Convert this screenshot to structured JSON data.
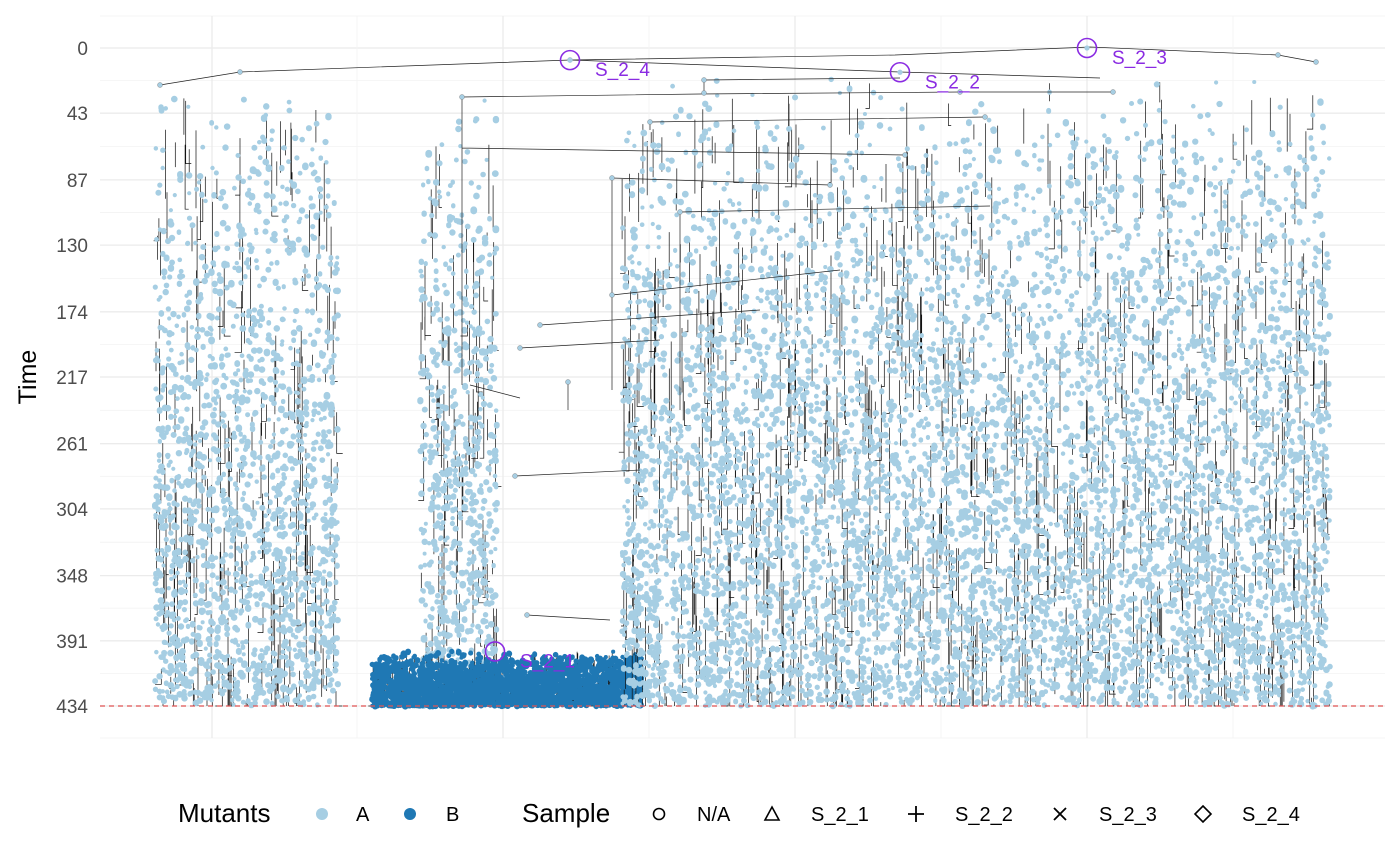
{
  "chart_data": {
    "type": "tree",
    "ylabel": "Time",
    "y_ticks": [
      0,
      43,
      87,
      130,
      174,
      217,
      261,
      304,
      348,
      391,
      434
    ],
    "ylim": [
      0,
      455
    ],
    "y_reversed": true,
    "grid": true,
    "reference_line": {
      "y": 434,
      "color": "#e05555",
      "style": "dashed"
    },
    "colors": {
      "A": "#a6cee3",
      "B": "#1f78b4",
      "edge": "#111111",
      "sample": "#8a2be2"
    },
    "legend": {
      "placement": "bottom",
      "mutants": {
        "title": "Mutants",
        "entries": [
          "A",
          "B"
        ]
      },
      "sample": {
        "title": "Sample",
        "entries": [
          "N/A",
          "S_2_1",
          "S_2_2",
          "S_2_3",
          "S_2_4"
        ]
      }
    },
    "samples": [
      {
        "name": "S_2_4",
        "time": 8
      },
      {
        "name": "S_2_2",
        "time": 16
      },
      {
        "name": "S_2_3",
        "time": 0
      },
      {
        "name": "S_2_1",
        "time": 398
      }
    ],
    "clusters": [
      {
        "mutant": "A",
        "top": 22,
        "bottom": 434
      },
      {
        "mutant": "A",
        "top": 32,
        "bottom": 434
      },
      {
        "mutant": "B",
        "top": 398,
        "bottom": 434
      },
      {
        "mutant": "A",
        "top": 20,
        "bottom": 434
      }
    ]
  }
}
